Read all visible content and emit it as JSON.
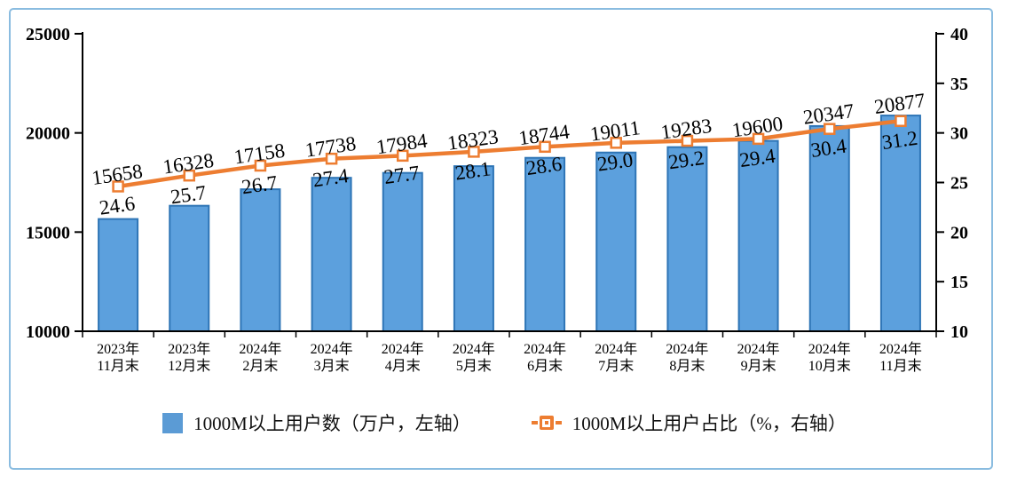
{
  "chart_data": {
    "type": "bar",
    "subtype": "bar+line-dual-axis",
    "categories": [
      "2023年11月末",
      "2023年12月末",
      "2024年2月末",
      "2024年3月末",
      "2024年4月末",
      "2024年5月末",
      "2024年6月末",
      "2024年7月末",
      "2024年8月末",
      "2024年9月末",
      "2024年10月末",
      "2024年11月末"
    ],
    "category_lines": [
      [
        "2023年",
        "11月末"
      ],
      [
        "2023年",
        "12月末"
      ],
      [
        "2024年",
        "2月末"
      ],
      [
        "2024年",
        "3月末"
      ],
      [
        "2024年",
        "4月末"
      ],
      [
        "2024年",
        "5月末"
      ],
      [
        "2024年",
        "6月末"
      ],
      [
        "2024年",
        "7月末"
      ],
      [
        "2024年",
        "8月末"
      ],
      [
        "2024年",
        "9月末"
      ],
      [
        "2024年",
        "10月末"
      ],
      [
        "2024年",
        "11月末"
      ]
    ],
    "series": [
      {
        "name": "1000M以上用户数（万户，左轴）",
        "type": "bar",
        "axis": "left",
        "values": [
          15658,
          16328,
          17158,
          17738,
          17984,
          18323,
          18744,
          19011,
          19283,
          19600,
          20347,
          20877
        ],
        "fill": "#5CA0DD",
        "border": "#2E75B6"
      },
      {
        "name": "1000M以上用户占比（%，右轴）",
        "type": "line",
        "axis": "right",
        "values": [
          24.6,
          25.7,
          26.7,
          27.4,
          27.7,
          28.1,
          28.6,
          29.0,
          29.2,
          29.4,
          30.4,
          31.2
        ],
        "color": "#ED7D31",
        "marker": "open-square"
      }
    ],
    "title": "",
    "xlabel": "",
    "ylabel_left": "",
    "ylabel_right": "",
    "left_axis": {
      "min": 10000,
      "max": 25000,
      "ticks": [
        25000,
        20000,
        15000,
        10000
      ]
    },
    "right_axis": {
      "min": 10,
      "max": 40,
      "ticks": [
        40,
        35,
        30,
        25,
        20,
        15,
        10
      ]
    },
    "grid": false,
    "legend_position": "bottom",
    "frame_border_color": "#8ABCE0",
    "axis_color": "#000000"
  }
}
